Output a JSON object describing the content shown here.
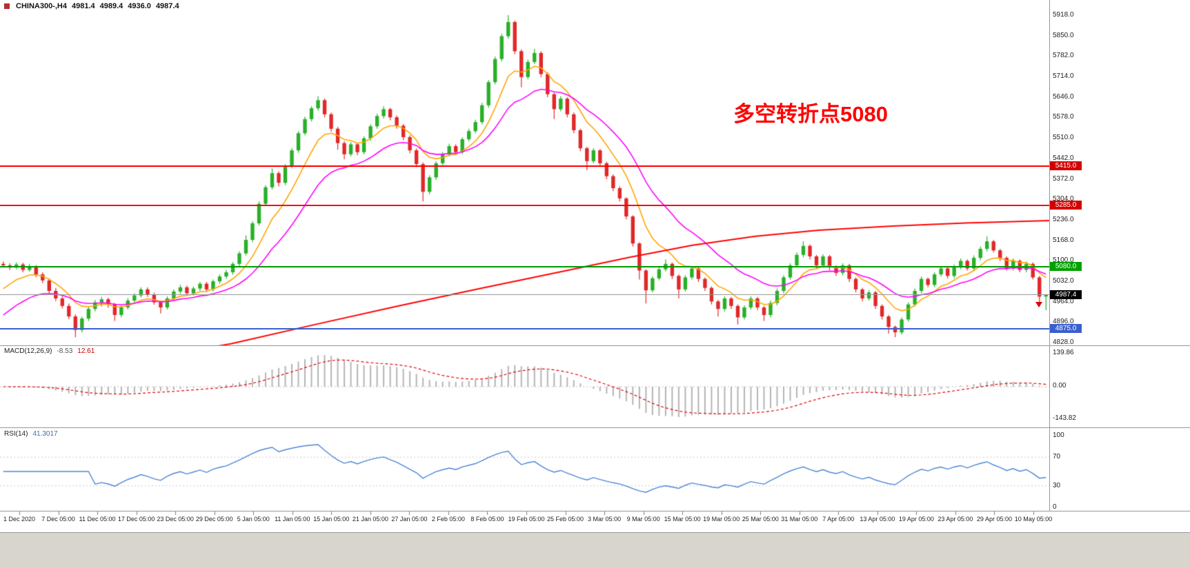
{
  "header": {
    "symbol": "CHINA300-,H4",
    "open": "4981.4",
    "high": "4989.4",
    "low": "4936.0",
    "close": "4987.4"
  },
  "annotation": {
    "text": "多空转折点5080",
    "color": "#FF0000"
  },
  "macd_panel": {
    "label": "MACD(12,26,9)",
    "macd_value": "-8.53",
    "signal_value": "12.61",
    "axis": [
      "139.86",
      "0.00",
      "-143.82"
    ]
  },
  "rsi_panel": {
    "label": "RSI(14)",
    "value": "41.3017",
    "axis_levels": [
      100,
      70,
      30,
      0
    ]
  },
  "chart_data": {
    "type": "candlestick",
    "symbol": "CHINA300-,H4",
    "timeframe": "H4",
    "ylim": [
      4828,
      5918
    ],
    "y_ticks": [
      "5918.0",
      "5850.0",
      "5782.0",
      "5714.0",
      "5646.0",
      "5578.0",
      "5510.0",
      "5442.0",
      "5372.0",
      "5304.0",
      "5236.0",
      "5168.0",
      "5100.0",
      "5032.0",
      "4964.0",
      "4896.0",
      "4828.0"
    ],
    "x_labels": [
      "1 Dec 2020",
      "7 Dec 05:00",
      "11 Dec 05:00",
      "17 Dec 05:00",
      "23 Dec 05:00",
      "29 Dec 05:00",
      "5 Jan 05:00",
      "11 Jan 05:00",
      "15 Jan 05:00",
      "21 Jan 05:00",
      "27 Jan 05:00",
      "2 Feb 05:00",
      "8 Feb 05:00",
      "19 Feb 05:00",
      "25 Feb 05:00",
      "3 Mar 05:00",
      "9 Mar 05:00",
      "15 Mar 05:00",
      "19 Mar 05:00",
      "25 Mar 05:00",
      "31 Mar 05:00",
      "7 Apr 05:00",
      "13 Apr 05:00",
      "19 Apr 05:00",
      "23 Apr 05:00",
      "29 Apr 05:00",
      "10 May 05:00"
    ],
    "colors": {
      "up": "#28B028",
      "down": "#E02828",
      "ema_fast": "#FFA500",
      "ema_mid": "#FF00FF",
      "ma_slow": "#FF0000",
      "macd_hist": "#B4B4B4",
      "macd_signal": "#E00000",
      "rsi": "#4A85D6",
      "rsi_levels": "#C8C8C8",
      "current_line": "#999999"
    },
    "candles": [
      [
        5090,
        5098,
        5078,
        5085
      ],
      [
        5085,
        5092,
        5070,
        5078
      ],
      [
        5078,
        5095,
        5072,
        5088
      ],
      [
        5088,
        5094,
        5062,
        5070
      ],
      [
        5070,
        5090,
        5064,
        5082
      ],
      [
        5082,
        5086,
        5046,
        5055
      ],
      [
        5055,
        5062,
        5026,
        5035
      ],
      [
        5035,
        5042,
        4992,
        5000
      ],
      [
        5000,
        5010,
        4966,
        4975
      ],
      [
        4975,
        4982,
        4942,
        4950
      ],
      [
        4950,
        4958,
        4906,
        4915
      ],
      [
        4915,
        4922,
        4846,
        4870
      ],
      [
        4870,
        4914,
        4862,
        4908
      ],
      [
        4908,
        4948,
        4900,
        4940
      ],
      [
        4940,
        4970,
        4932,
        4962
      ],
      [
        4962,
        4980,
        4948,
        4972
      ],
      [
        4972,
        4978,
        4944,
        4955
      ],
      [
        4955,
        4960,
        4900,
        4920
      ],
      [
        4920,
        4952,
        4912,
        4945
      ],
      [
        4945,
        4976,
        4938,
        4968
      ],
      [
        4968,
        4992,
        4960,
        4985
      ],
      [
        4985,
        5012,
        4978,
        5005
      ],
      [
        5005,
        5012,
        4980,
        4988
      ],
      [
        4988,
        4994,
        4954,
        4962
      ],
      [
        4962,
        4968,
        4925,
        4945
      ],
      [
        4945,
        4982,
        4938,
        4975
      ],
      [
        4975,
        5005,
        4968,
        4998
      ],
      [
        4998,
        5020,
        4990,
        5012
      ],
      [
        5012,
        5018,
        4984,
        4992
      ],
      [
        4992,
        5015,
        4985,
        5008
      ],
      [
        5008,
        5030,
        5000,
        5024
      ],
      [
        5024,
        5030,
        4996,
        5005
      ],
      [
        5005,
        5038,
        4998,
        5032
      ],
      [
        5032,
        5055,
        5024,
        5048
      ],
      [
        5048,
        5070,
        5040,
        5062
      ],
      [
        5062,
        5096,
        5054,
        5090
      ],
      [
        5090,
        5132,
        5082,
        5125
      ],
      [
        5125,
        5185,
        5118,
        5170
      ],
      [
        5170,
        5232,
        5162,
        5225
      ],
      [
        5225,
        5298,
        5218,
        5290
      ],
      [
        5290,
        5352,
        5282,
        5345
      ],
      [
        5345,
        5408,
        5338,
        5392
      ],
      [
        5392,
        5398,
        5348,
        5360
      ],
      [
        5360,
        5422,
        5352,
        5415
      ],
      [
        5415,
        5475,
        5408,
        5468
      ],
      [
        5468,
        5532,
        5460,
        5525
      ],
      [
        5525,
        5580,
        5518,
        5572
      ],
      [
        5572,
        5615,
        5564,
        5608
      ],
      [
        5608,
        5648,
        5600,
        5635
      ],
      [
        5635,
        5640,
        5578,
        5588
      ],
      [
        5588,
        5594,
        5530,
        5540
      ],
      [
        5540,
        5546,
        5470,
        5492
      ],
      [
        5492,
        5498,
        5438,
        5455
      ],
      [
        5455,
        5495,
        5448,
        5488
      ],
      [
        5488,
        5494,
        5452,
        5462
      ],
      [
        5462,
        5515,
        5455,
        5508
      ],
      [
        5508,
        5555,
        5500,
        5548
      ],
      [
        5548,
        5590,
        5540,
        5582
      ],
      [
        5582,
        5615,
        5574,
        5605
      ],
      [
        5605,
        5610,
        5568,
        5578
      ],
      [
        5578,
        5584,
        5540,
        5550
      ],
      [
        5550,
        5556,
        5502,
        5512
      ],
      [
        5512,
        5518,
        5458,
        5468
      ],
      [
        5468,
        5474,
        5412,
        5422
      ],
      [
        5422,
        5428,
        5298,
        5330
      ],
      [
        5330,
        5385,
        5322,
        5378
      ],
      [
        5378,
        5432,
        5370,
        5425
      ],
      [
        5425,
        5462,
        5418,
        5455
      ],
      [
        5455,
        5490,
        5448,
        5482
      ],
      [
        5482,
        5488,
        5452,
        5462
      ],
      [
        5462,
        5512,
        5455,
        5505
      ],
      [
        5505,
        5540,
        5498,
        5532
      ],
      [
        5532,
        5570,
        5525,
        5562
      ],
      [
        5562,
        5626,
        5555,
        5618
      ],
      [
        5618,
        5702,
        5610,
        5695
      ],
      [
        5695,
        5780,
        5688,
        5772
      ],
      [
        5772,
        5856,
        5764,
        5848
      ],
      [
        5848,
        5918,
        5840,
        5895
      ],
      [
        5895,
        5900,
        5788,
        5798
      ],
      [
        5798,
        5804,
        5678,
        5712
      ],
      [
        5712,
        5770,
        5705,
        5762
      ],
      [
        5762,
        5806,
        5755,
        5792
      ],
      [
        5792,
        5798,
        5712,
        5722
      ],
      [
        5722,
        5728,
        5645,
        5655
      ],
      [
        5655,
        5660,
        5572,
        5605
      ],
      [
        5605,
        5648,
        5598,
        5640
      ],
      [
        5640,
        5645,
        5578,
        5588
      ],
      [
        5588,
        5594,
        5525,
        5535
      ],
      [
        5535,
        5540,
        5465,
        5475
      ],
      [
        5475,
        5480,
        5402,
        5432
      ],
      [
        5432,
        5475,
        5425,
        5468
      ],
      [
        5468,
        5472,
        5415,
        5425
      ],
      [
        5425,
        5430,
        5372,
        5382
      ],
      [
        5382,
        5388,
        5332,
        5342
      ],
      [
        5342,
        5348,
        5298,
        5308
      ],
      [
        5308,
        5312,
        5238,
        5248
      ],
      [
        5248,
        5252,
        5148,
        5158
      ],
      [
        5158,
        5162,
        5038,
        5068
      ],
      [
        5068,
        5072,
        4958,
        5002
      ],
      [
        5002,
        5048,
        4995,
        5042
      ],
      [
        5042,
        5080,
        5035,
        5072
      ],
      [
        5072,
        5105,
        5065,
        5090
      ],
      [
        5090,
        5095,
        5040,
        5050
      ],
      [
        5050,
        5055,
        4975,
        5005
      ],
      [
        5005,
        5052,
        4998,
        5045
      ],
      [
        5045,
        5082,
        5038,
        5075
      ],
      [
        5075,
        5080,
        5030,
        5040
      ],
      [
        5040,
        5045,
        5000,
        5010
      ],
      [
        5010,
        5015,
        4955,
        4965
      ],
      [
        4965,
        4970,
        4915,
        4940
      ],
      [
        4940,
        4982,
        4932,
        4975
      ],
      [
        4975,
        4980,
        4940,
        4950
      ],
      [
        4950,
        4955,
        4888,
        4912
      ],
      [
        4912,
        4952,
        4905,
        4945
      ],
      [
        4945,
        4982,
        4938,
        4975
      ],
      [
        4975,
        4980,
        4936,
        4945
      ],
      [
        4945,
        4950,
        4900,
        4920
      ],
      [
        4920,
        4968,
        4912,
        4960
      ],
      [
        4960,
        5008,
        4952,
        5000
      ],
      [
        5000,
        5052,
        4992,
        5045
      ],
      [
        5045,
        5092,
        5038,
        5085
      ],
      [
        5085,
        5128,
        5078,
        5120
      ],
      [
        5120,
        5165,
        5112,
        5150
      ],
      [
        5150,
        5155,
        5105,
        5115
      ],
      [
        5115,
        5120,
        5075,
        5085
      ],
      [
        5085,
        5122,
        5078,
        5115
      ],
      [
        5115,
        5120,
        5070,
        5080
      ],
      [
        5080,
        5085,
        5050,
        5060
      ],
      [
        5060,
        5092,
        5052,
        5085
      ],
      [
        5085,
        5090,
        5030,
        5040
      ],
      [
        5040,
        5045,
        4995,
        5005
      ],
      [
        5005,
        5010,
        4965,
        4975
      ],
      [
        4975,
        5002,
        4968,
        4995
      ],
      [
        4995,
        5000,
        4940,
        4950
      ],
      [
        4950,
        4955,
        4905,
        4915
      ],
      [
        4915,
        4920,
        4858,
        4880
      ],
      [
        4880,
        4885,
        4846,
        4862
      ],
      [
        4862,
        4912,
        4855,
        4905
      ],
      [
        4905,
        4962,
        4898,
        4955
      ],
      [
        4955,
        5008,
        4948,
        5000
      ],
      [
        5000,
        5048,
        4992,
        5040
      ],
      [
        5040,
        5045,
        5012,
        5020
      ],
      [
        5020,
        5062,
        5012,
        5055
      ],
      [
        5055,
        5082,
        5048,
        5075
      ],
      [
        5075,
        5080,
        5042,
        5050
      ],
      [
        5050,
        5088,
        5042,
        5080
      ],
      [
        5080,
        5108,
        5072,
        5100
      ],
      [
        5100,
        5105,
        5068,
        5075
      ],
      [
        5075,
        5118,
        5068,
        5110
      ],
      [
        5110,
        5148,
        5102,
        5140
      ],
      [
        5140,
        5182,
        5132,
        5165
      ],
      [
        5165,
        5170,
        5128,
        5135
      ],
      [
        5135,
        5140,
        5100,
        5110
      ],
      [
        5110,
        5115,
        5068,
        5075
      ],
      [
        5075,
        5108,
        5068,
        5100
      ],
      [
        5100,
        5105,
        5062,
        5070
      ],
      [
        5070,
        5098,
        5062,
        5090
      ],
      [
        5090,
        5095,
        5038,
        5045
      ],
      [
        5045,
        5050,
        4955,
        4981
      ],
      [
        4981.4,
        4989.4,
        4936,
        4987.4
      ]
    ],
    "overlays": {
      "ema_fast": {
        "period": 8,
        "seed": 4985
      },
      "ema_mid": {
        "period": 18,
        "seed": 4900
      },
      "ma_slow_points": [
        [
          0,
          4700
        ],
        [
          0.08,
          4742
        ],
        [
          0.16,
          4788
        ],
        [
          0.22,
          4824
        ],
        [
          0.3,
          4888
        ],
        [
          0.38,
          4950
        ],
        [
          0.46,
          5010
        ],
        [
          0.54,
          5068
        ],
        [
          0.6,
          5112
        ],
        [
          0.66,
          5152
        ],
        [
          0.72,
          5182
        ],
        [
          0.78,
          5202
        ],
        [
          0.85,
          5216
        ],
        [
          0.92,
          5226
        ],
        [
          1,
          5234
        ]
      ]
    },
    "levels": [
      {
        "price": 5415.0,
        "label": "5415.0",
        "line_color": "#FF0000",
        "badge_color": "#D40000",
        "thickness": 2
      },
      {
        "price": 5285.0,
        "label": "5285.0",
        "line_color": "#FF0000",
        "badge_color": "#D40000",
        "thickness": 2
      },
      {
        "price": 5080.0,
        "label": "5080.0",
        "line_color": "#009900",
        "badge_color": "#00A000",
        "thickness": 2
      },
      {
        "price": 4875.0,
        "label": "4875.0",
        "line_color": "#3A5FCD",
        "badge_color": "#3A5FCD",
        "thickness": 2
      }
    ],
    "current_price": {
      "value": 4987.4,
      "label": "4987.4",
      "badge_color": "#000000",
      "line_color": "#999999"
    },
    "indicators": {
      "macd": {
        "fast": 12,
        "slow": 26,
        "signal": 9,
        "macd_value": -8.53,
        "signal_value": 12.61,
        "hist_range": [
          -143.82,
          139.86
        ]
      },
      "rsi": {
        "period": 14,
        "value": 41.3017,
        "levels": [
          70,
          30
        ]
      }
    }
  }
}
